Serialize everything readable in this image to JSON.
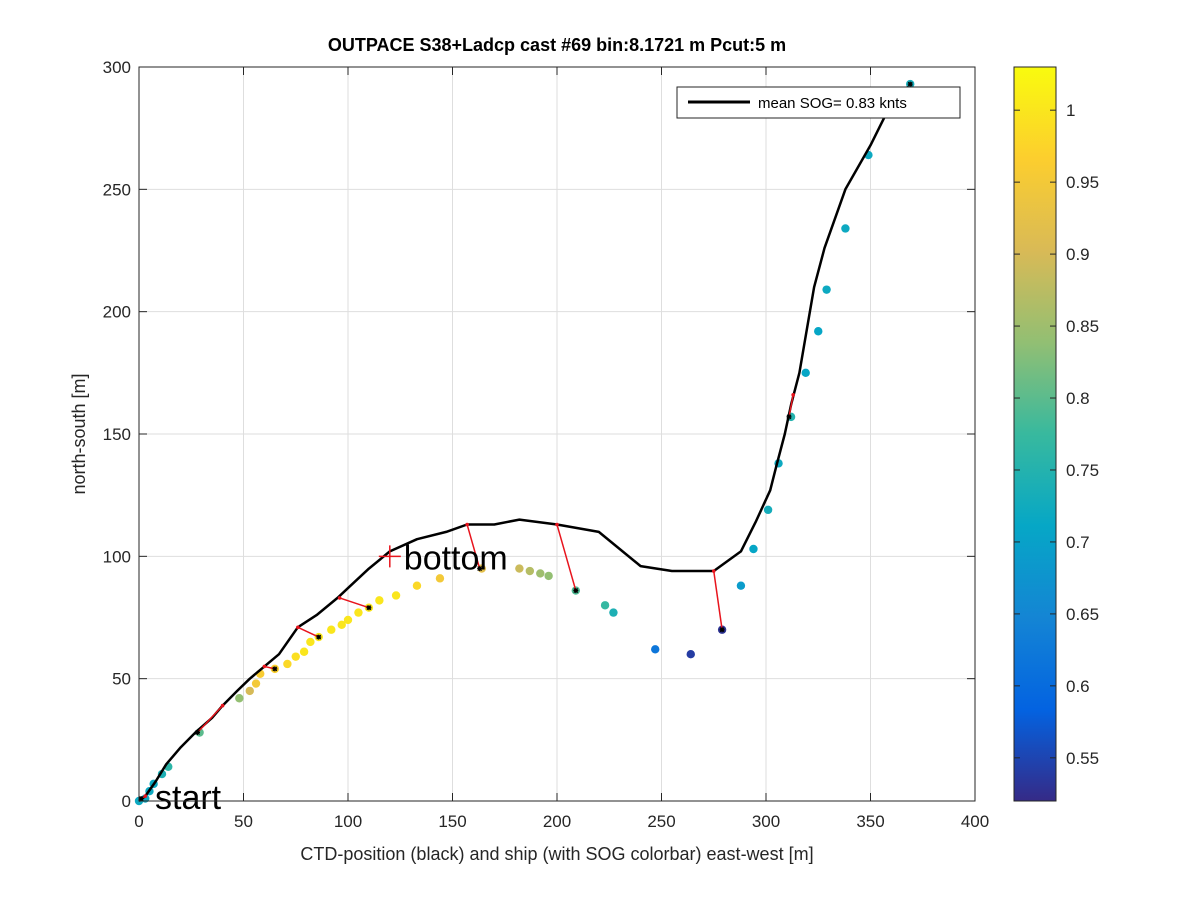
{
  "chart_data": {
    "type": "scatter",
    "title": "OUTPACE S38+Ladcp cast #69 bin:8.1721 m  Pcut:5 m",
    "xlabel": "CTD-position (black) and ship (with SOG colorbar) east-west [m]",
    "ylabel": "north-south [m]",
    "xlim": [
      0,
      400
    ],
    "ylim": [
      0,
      300
    ],
    "xticks": [
      "0",
      "50",
      "100",
      "150",
      "200",
      "250",
      "300",
      "350",
      "400"
    ],
    "yticks": [
      "0",
      "50",
      "100",
      "150",
      "200",
      "250",
      "300"
    ],
    "grid": true,
    "legend": {
      "label": "mean SOG=  0.83 knts",
      "position": "top-right"
    },
    "colorbar": {
      "range": [
        0.52,
        1.03
      ],
      "ticks": [
        "0.55",
        "0.6",
        "0.65",
        "0.7",
        "0.75",
        "0.8",
        "0.85",
        "0.9",
        "0.95",
        "1"
      ],
      "colormap": [
        "#352a87",
        "#0363e1",
        "#1485d4",
        "#06a7c6",
        "#38b99e",
        "#92bf73",
        "#d9ba56",
        "#fcce2e",
        "#f9fb0e"
      ]
    },
    "annotations": [
      {
        "text": "start",
        "x": 0,
        "y": 0
      },
      {
        "text": "bottom",
        "x": 120,
        "y": 100,
        "marker": "+"
      }
    ],
    "ctd_track": [
      [
        0,
        0
      ],
      [
        3,
        2
      ],
      [
        8,
        8
      ],
      [
        13,
        15
      ],
      [
        20,
        22
      ],
      [
        27,
        28
      ],
      [
        35,
        34
      ],
      [
        40,
        39
      ],
      [
        47,
        45
      ],
      [
        53,
        50
      ],
      [
        60,
        55
      ],
      [
        67,
        60
      ],
      [
        76,
        71
      ],
      [
        85,
        76
      ],
      [
        95,
        83
      ],
      [
        100,
        87
      ],
      [
        110,
        95
      ],
      [
        120,
        102
      ],
      [
        133,
        107
      ],
      [
        147,
        110
      ],
      [
        157,
        113
      ],
      [
        170,
        113
      ],
      [
        182,
        115
      ],
      [
        200,
        113
      ],
      [
        220,
        110
      ],
      [
        240,
        96
      ],
      [
        255,
        94
      ],
      [
        275,
        94
      ],
      [
        288,
        102
      ],
      [
        295,
        114
      ],
      [
        302,
        127
      ],
      [
        305,
        137
      ],
      [
        309,
        150
      ],
      [
        312,
        162
      ],
      [
        316,
        175
      ],
      [
        319,
        190
      ],
      [
        323,
        210
      ],
      [
        328,
        226
      ],
      [
        338,
        250
      ],
      [
        350,
        268
      ],
      [
        357,
        280
      ],
      [
        368,
        292
      ]
    ],
    "connectors": [
      [
        [
          3,
          2
        ],
        [
          1,
          1
        ]
      ],
      [
        [
          40,
          39
        ],
        [
          28,
          28
        ]
      ],
      [
        [
          60,
          55
        ],
        [
          65,
          54
        ]
      ],
      [
        [
          76,
          71
        ],
        [
          86,
          67
        ]
      ],
      [
        [
          96,
          83
        ],
        [
          110,
          79
        ]
      ],
      [
        [
          157,
          113
        ],
        [
          163,
          95
        ]
      ],
      [
        [
          200,
          113
        ],
        [
          209,
          86
        ]
      ],
      [
        [
          275,
          94
        ],
        [
          279,
          70
        ]
      ],
      [
        [
          313,
          166
        ],
        [
          311,
          157
        ]
      ]
    ],
    "ship_points": [
      {
        "x": 0,
        "y": 0,
        "sog": 0.72
      },
      {
        "x": 3,
        "y": 1,
        "sog": 0.72
      },
      {
        "x": 5,
        "y": 4,
        "sog": 0.72
      },
      {
        "x": 7,
        "y": 7,
        "sog": 0.72
      },
      {
        "x": 11,
        "y": 11,
        "sog": 0.74
      },
      {
        "x": 14,
        "y": 14,
        "sog": 0.76
      },
      {
        "x": 29,
        "y": 28,
        "sog": 0.8
      },
      {
        "x": 48,
        "y": 42,
        "sog": 0.84
      },
      {
        "x": 53,
        "y": 45,
        "sog": 0.9
      },
      {
        "x": 56,
        "y": 48,
        "sog": 0.95
      },
      {
        "x": 58,
        "y": 52,
        "sog": 0.96
      },
      {
        "x": 65,
        "y": 54,
        "sog": 0.97
      },
      {
        "x": 71,
        "y": 56,
        "sog": 0.98
      },
      {
        "x": 75,
        "y": 59,
        "sog": 0.99
      },
      {
        "x": 79,
        "y": 61,
        "sog": 1.0
      },
      {
        "x": 82,
        "y": 65,
        "sog": 1.0
      },
      {
        "x": 86,
        "y": 67,
        "sog": 1.0
      },
      {
        "x": 92,
        "y": 70,
        "sog": 1.0
      },
      {
        "x": 97,
        "y": 72,
        "sog": 1.0
      },
      {
        "x": 100,
        "y": 74,
        "sog": 1.0
      },
      {
        "x": 105,
        "y": 77,
        "sog": 1.0
      },
      {
        "x": 110,
        "y": 79,
        "sog": 1.0
      },
      {
        "x": 115,
        "y": 82,
        "sog": 1.0
      },
      {
        "x": 123,
        "y": 84,
        "sog": 1.0
      },
      {
        "x": 133,
        "y": 88,
        "sog": 0.98
      },
      {
        "x": 144,
        "y": 91,
        "sog": 0.95
      },
      {
        "x": 164,
        "y": 95,
        "sog": 0.92
      },
      {
        "x": 182,
        "y": 95,
        "sog": 0.89
      },
      {
        "x": 187,
        "y": 94,
        "sog": 0.87
      },
      {
        "x": 192,
        "y": 93,
        "sog": 0.85
      },
      {
        "x": 196,
        "y": 92,
        "sog": 0.84
      },
      {
        "x": 209,
        "y": 86,
        "sog": 0.79
      },
      {
        "x": 223,
        "y": 80,
        "sog": 0.77
      },
      {
        "x": 227,
        "y": 77,
        "sog": 0.74
      },
      {
        "x": 247,
        "y": 62,
        "sog": 0.62
      },
      {
        "x": 264,
        "y": 60,
        "sog": 0.54
      },
      {
        "x": 279,
        "y": 70,
        "sog": 0.53
      },
      {
        "x": 288,
        "y": 88,
        "sog": 0.69
      },
      {
        "x": 294,
        "y": 103,
        "sog": 0.71
      },
      {
        "x": 301,
        "y": 119,
        "sog": 0.73
      },
      {
        "x": 306,
        "y": 138,
        "sog": 0.72
      },
      {
        "x": 312,
        "y": 157,
        "sog": 0.75
      },
      {
        "x": 319,
        "y": 175,
        "sog": 0.71
      },
      {
        "x": 325,
        "y": 192,
        "sog": 0.71
      },
      {
        "x": 329,
        "y": 209,
        "sog": 0.72
      },
      {
        "x": 338,
        "y": 234,
        "sog": 0.72
      },
      {
        "x": 349,
        "y": 264,
        "sog": 0.72
      },
      {
        "x": 369,
        "y": 293,
        "sog": 0.73
      }
    ],
    "ctd_markers": [
      [
        1,
        1
      ],
      [
        28,
        28
      ],
      [
        65,
        54
      ],
      [
        86,
        67
      ],
      [
        110,
        79
      ],
      [
        163,
        95
      ],
      [
        209,
        86
      ],
      [
        279,
        70
      ],
      [
        311,
        157
      ],
      [
        369,
        293
      ]
    ]
  }
}
